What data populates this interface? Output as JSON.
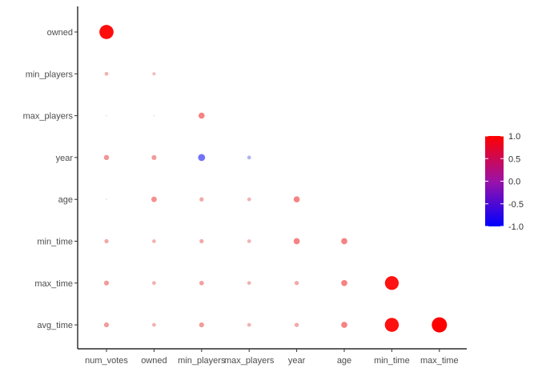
{
  "chart_data": {
    "type": "scatter",
    "title": "",
    "xlabel": "",
    "ylabel": "",
    "x_categories": [
      "num_votes",
      "owned",
      "min_players",
      "max_players",
      "year",
      "age",
      "min_time",
      "max_time"
    ],
    "y_categories": [
      "owned",
      "min_players",
      "max_players",
      "year",
      "age",
      "min_time",
      "max_time",
      "avg_time"
    ],
    "correlations": [
      {
        "x": "num_votes",
        "y": "owned",
        "value": 0.85
      },
      {
        "x": "num_votes",
        "y": "min_players",
        "value": 0.02
      },
      {
        "x": "owned",
        "y": "min_players",
        "value": 0.01
      },
      {
        "x": "num_votes",
        "y": "max_players",
        "value": 0.0
      },
      {
        "x": "owned",
        "y": "max_players",
        "value": 0.0
      },
      {
        "x": "min_players",
        "y": "max_players",
        "value": 0.1
      },
      {
        "x": "num_votes",
        "y": "year",
        "value": 0.06
      },
      {
        "x": "owned",
        "y": "year",
        "value": 0.05
      },
      {
        "x": "min_players",
        "y": "year",
        "value": -0.15
      },
      {
        "x": "max_players",
        "y": "year",
        "value": -0.02
      },
      {
        "x": "num_votes",
        "y": "age",
        "value": 0.0
      },
      {
        "x": "owned",
        "y": "age",
        "value": 0.07
      },
      {
        "x": "min_players",
        "y": "age",
        "value": 0.03
      },
      {
        "x": "max_players",
        "y": "age",
        "value": 0.02
      },
      {
        "x": "year",
        "y": "age",
        "value": 0.1
      },
      {
        "x": "num_votes",
        "y": "min_time",
        "value": 0.03
      },
      {
        "x": "owned",
        "y": "min_time",
        "value": 0.02
      },
      {
        "x": "min_players",
        "y": "min_time",
        "value": 0.03
      },
      {
        "x": "max_players",
        "y": "min_time",
        "value": 0.02
      },
      {
        "x": "year",
        "y": "min_time",
        "value": 0.1
      },
      {
        "x": "age",
        "y": "min_time",
        "value": 0.1
      },
      {
        "x": "num_votes",
        "y": "max_time",
        "value": 0.05
      },
      {
        "x": "owned",
        "y": "max_time",
        "value": 0.02
      },
      {
        "x": "min_players",
        "y": "max_time",
        "value": 0.04
      },
      {
        "x": "max_players",
        "y": "max_time",
        "value": 0.02
      },
      {
        "x": "year",
        "y": "max_time",
        "value": 0.03
      },
      {
        "x": "age",
        "y": "max_time",
        "value": 0.1
      },
      {
        "x": "min_time",
        "y": "max_time",
        "value": 0.8
      },
      {
        "x": "num_votes",
        "y": "avg_time",
        "value": 0.05
      },
      {
        "x": "owned",
        "y": "avg_time",
        "value": 0.02
      },
      {
        "x": "min_players",
        "y": "avg_time",
        "value": 0.05
      },
      {
        "x": "max_players",
        "y": "avg_time",
        "value": 0.02
      },
      {
        "x": "year",
        "y": "avg_time",
        "value": 0.03
      },
      {
        "x": "age",
        "y": "avg_time",
        "value": 0.1
      },
      {
        "x": "min_time",
        "y": "avg_time",
        "value": 0.82
      },
      {
        "x": "max_time",
        "y": "avg_time",
        "value": 1.0
      }
    ],
    "legend": {
      "placement": "right",
      "range": [
        -1,
        1
      ],
      "ticks": [
        "1.0",
        "0.5",
        "0.0",
        "-0.5",
        "-1.0"
      ],
      "tick_values": [
        1.0,
        0.5,
        0.0,
        -0.5,
        -1.0
      ],
      "colors": {
        "low": "#0000FF",
        "mid": "#EDEDED",
        "high": "#FF0000"
      }
    },
    "grid": false
  }
}
